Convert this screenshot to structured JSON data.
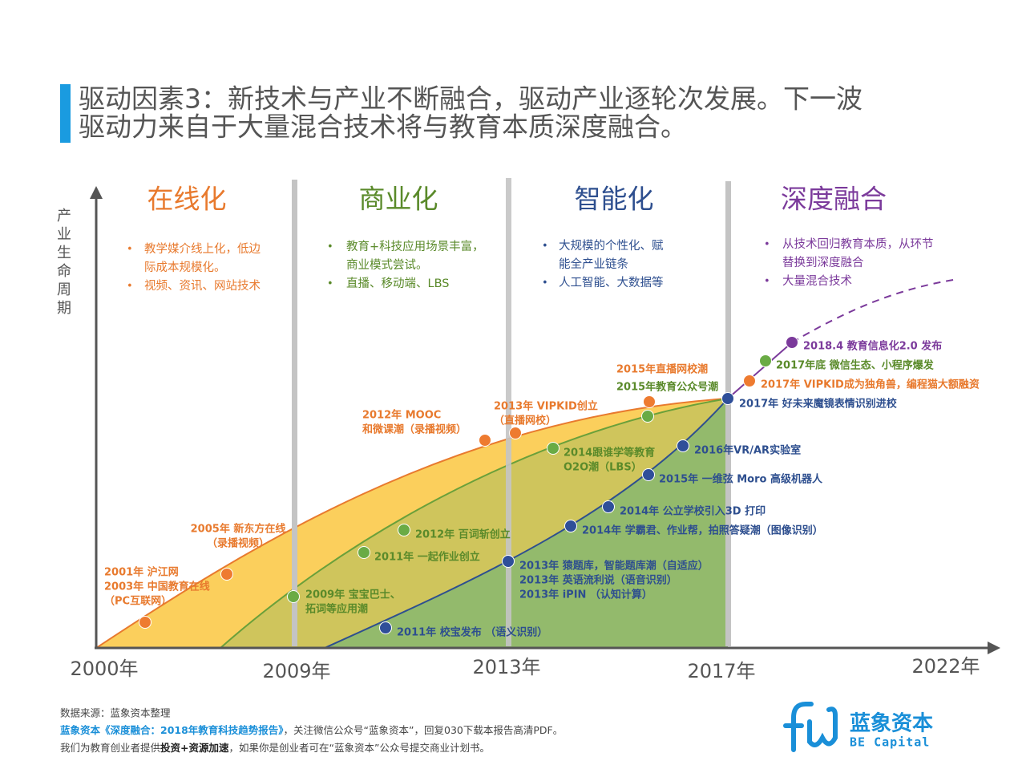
{
  "header": {
    "title": [
      "驱动因素3：新技术与产业不断融合，驱动产业逐轮次发展。下一波",
      "驱动力来自于大量混合技术将与教育本质深度融合。"
    ]
  },
  "y_axis_label": "产业生命周期",
  "x_axis_labels": [
    "2000年",
    "2009年",
    "2013年",
    "2017年",
    "2022年"
  ],
  "phases": [
    {
      "title": "在线化",
      "bullets": [
        [
          "教学媒介线上化，低边",
          "际成本规模化。"
        ],
        [
          "视频、资讯、网站技术"
        ]
      ]
    },
    {
      "title": "商业化",
      "bullets": [
        [
          "教育+科技应用场景丰富，",
          "商业模式尝试。"
        ],
        [
          "直播、移动端、LBS"
        ]
      ]
    },
    {
      "title": "智能化",
      "bullets": [
        [
          "大规模的个性化、赋",
          "能全产业链条"
        ],
        [
          "人工智能、大数据等"
        ]
      ]
    },
    {
      "title": "深度融合",
      "bullets": [
        [
          "从技术回归教育本质，从环节",
          "替换到深度融合"
        ],
        [
          "大量混合技术"
        ]
      ]
    }
  ],
  "events": [
    [
      "2001年 沪江网",
      "2003年 中国教育在线",
      "（PC互联网）"
    ],
    [
      "2005年 新东方在线",
      "（录播视频）"
    ],
    [
      "2012年 MOOC",
      "和微课潮（录播视频）"
    ],
    [
      "2013年 VIPKID创立",
      "（直播网校）"
    ],
    [
      "2015年直播网校潮"
    ],
    [
      "2015年教育公众号潮"
    ],
    [
      "2009年 宝宝巴士、",
      "拓词等应用潮"
    ],
    [
      "2011年 一起作业创立"
    ],
    [
      "2012年 百词斩创立"
    ],
    [
      "2014跟谁学等教育",
      "O2O潮（LBS）"
    ],
    [
      "2011年 校宝发布 （语义识别）"
    ],
    [
      "2013年 猿题库，智能题库潮（自适应）",
      "2013年 英语流利说（语音识别）",
      "2013年 iPIN （认知计算）"
    ],
    [
      "2014年 学霸君、作业帮，拍照答疑潮（图像识别）"
    ],
    [
      "2014年 公立学校引入3D 打印"
    ],
    [
      "2015年 一维弦 Moro 高级机器人"
    ],
    [
      "2016年VR/AR实验室"
    ],
    [
      "2017年 好未来魔镜表情识别进校"
    ],
    [
      "2017年 VIPKID成为独角兽，编程猫大额融资"
    ],
    [
      "2017年底 微信生态、小程序爆发"
    ],
    [
      "2018.4 教育信息化2.0 发布"
    ]
  ],
  "footer": {
    "source": "数据来源：蓝象资本整理",
    "line2": [
      "蓝象资本《深度融合：2018年教育科技趋势报告》",
      "，关注微信公众号“蓝象资本”，回复030下载本报告高清PDF。"
    ],
    "line3": [
      "我们为教育创业者提供",
      "投资+资源加速",
      "，如果你是创业者可在“蓝象资本”公众号提交商业计划书。"
    ]
  },
  "logo": {
    "name": "蓝象资本",
    "english": "BE Capital"
  }
}
